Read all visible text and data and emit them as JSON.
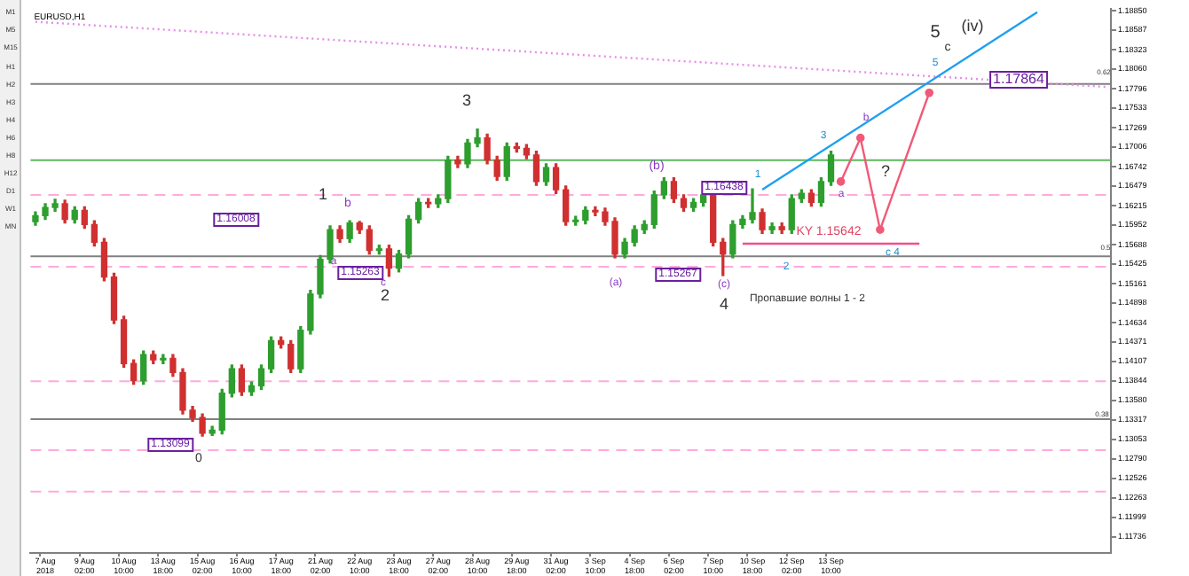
{
  "chart_data": {
    "type": "candlestick",
    "title": "EURUSD,H1",
    "categories": [
      null,
      "7 Aug 2018",
      null,
      null,
      null,
      "9 Aug 02:00",
      null,
      null,
      null,
      "10 Aug 10:00",
      null,
      null,
      null,
      "13 Aug 18:00",
      null,
      null,
      null,
      "15 Aug 02:00",
      null,
      null,
      null,
      "16 Aug 10:00",
      null,
      null,
      null,
      "17 Aug 18:00",
      null,
      null,
      null,
      "21 Aug 02:00",
      null,
      null,
      null,
      "22 Aug 10:00",
      null,
      null,
      null,
      "23 Aug 18:00",
      null,
      null,
      null,
      "27 Aug 02:00",
      null,
      null,
      null,
      "28 Aug 10:00",
      null,
      null,
      null,
      "29 Aug 18:00",
      null,
      null,
      null,
      "31 Aug 02:00",
      null,
      null,
      null,
      "3 Sep 10:00",
      null,
      null,
      null,
      "4 Sep 18:00",
      null,
      null,
      null,
      "6 Sep 02:00",
      null,
      null,
      null,
      "7 Sep 10:00",
      null,
      null,
      null,
      "10 Sep 18:00",
      null,
      null,
      null,
      "12 Sep 02:00",
      null,
      null,
      null,
      "13 Sep 10:00",
      null,
      null,
      null,
      null,
      null,
      null,
      null,
      null,
      null,
      null,
      null,
      null,
      null,
      null,
      null,
      null,
      null,
      null,
      null,
      null,
      null,
      null,
      null,
      null,
      null,
      null,
      null,
      null
    ],
    "ohlc": [
      [
        1.16,
        1.1613,
        1.1595,
        1.1608
      ],
      [
        1.1608,
        1.1624,
        1.1603,
        1.1619
      ],
      [
        1.1619,
        1.163,
        1.1614,
        1.1624
      ],
      [
        1.1624,
        1.1629,
        1.1598,
        1.1603
      ],
      [
        1.1603,
        1.162,
        1.1598,
        1.1615
      ],
      [
        1.1615,
        1.162,
        1.1591,
        1.1596
      ],
      [
        1.1596,
        1.1601,
        1.1567,
        1.1572
      ],
      [
        1.1572,
        1.1577,
        1.152,
        1.1525
      ],
      [
        1.1525,
        1.153,
        1.1462,
        1.1467
      ],
      [
        1.1467,
        1.1472,
        1.1403,
        1.1408
      ],
      [
        1.1408,
        1.1413,
        1.138,
        1.1385
      ],
      [
        1.1385,
        1.1425,
        1.138,
        1.142
      ],
      [
        1.142,
        1.1425,
        1.1408,
        1.1413
      ],
      [
        1.1413,
        1.142,
        1.1408,
        1.1415
      ],
      [
        1.1415,
        1.142,
        1.1391,
        1.1396
      ],
      [
        1.1396,
        1.1401,
        1.134,
        1.1345
      ],
      [
        1.1345,
        1.135,
        1.133,
        1.1335
      ],
      [
        1.1335,
        1.134,
        1.131,
        1.1314
      ],
      [
        1.1314,
        1.1323,
        1.1311,
        1.1318
      ],
      [
        1.1318,
        1.1373,
        1.1313,
        1.1368
      ],
      [
        1.1368,
        1.1406,
        1.1363,
        1.1401
      ],
      [
        1.1401,
        1.1406,
        1.1365,
        1.137
      ],
      [
        1.137,
        1.1383,
        1.1365,
        1.1378
      ],
      [
        1.1378,
        1.1406,
        1.1373,
        1.1401
      ],
      [
        1.1401,
        1.1444,
        1.1396,
        1.1439
      ],
      [
        1.1439,
        1.1444,
        1.1429,
        1.1434
      ],
      [
        1.1434,
        1.1439,
        1.1396,
        1.1401
      ],
      [
        1.1401,
        1.1458,
        1.1396,
        1.1453
      ],
      [
        1.1453,
        1.1507,
        1.1448,
        1.1502
      ],
      [
        1.1502,
        1.1554,
        1.1497,
        1.1549
      ],
      [
        1.1549,
        1.1594,
        1.1544,
        1.1589
      ],
      [
        1.1589,
        1.1594,
        1.1572,
        1.1577
      ],
      [
        1.1577,
        1.1601,
        1.1572,
        1.1598
      ],
      [
        1.1598,
        1.16,
        1.1584,
        1.1589
      ],
      [
        1.1589,
        1.1594,
        1.1556,
        1.1561
      ],
      [
        1.1561,
        1.1568,
        1.1556,
        1.1563
      ],
      [
        1.1563,
        1.1568,
        1.1526,
        1.1537
      ],
      [
        1.1537,
        1.1561,
        1.1532,
        1.1556
      ],
      [
        1.1556,
        1.1608,
        1.1551,
        1.1603
      ],
      [
        1.1603,
        1.1631,
        1.1598,
        1.1626
      ],
      [
        1.1626,
        1.1631,
        1.1619,
        1.1624
      ],
      [
        1.1624,
        1.1636,
        1.1619,
        1.1631
      ],
      [
        1.1631,
        1.1688,
        1.1626,
        1.1683
      ],
      [
        1.1683,
        1.1688,
        1.1673,
        1.1678
      ],
      [
        1.1678,
        1.1711,
        1.1673,
        1.1706
      ],
      [
        1.1706,
        1.1725,
        1.1701,
        1.1713
      ],
      [
        1.1713,
        1.1718,
        1.1678,
        1.1683
      ],
      [
        1.1683,
        1.1688,
        1.1656,
        1.1661
      ],
      [
        1.1661,
        1.1706,
        1.1656,
        1.1701
      ],
      [
        1.1701,
        1.1706,
        1.1694,
        1.1699
      ],
      [
        1.1699,
        1.1704,
        1.1685,
        1.169
      ],
      [
        1.169,
        1.1695,
        1.1649,
        1.1654
      ],
      [
        1.1654,
        1.1678,
        1.1649,
        1.1673
      ],
      [
        1.1673,
        1.1678,
        1.1638,
        1.1643
      ],
      [
        1.1643,
        1.1648,
        1.1595,
        1.16
      ],
      [
        1.16,
        1.1607,
        1.1595,
        1.1602
      ],
      [
        1.1602,
        1.162,
        1.1597,
        1.1615
      ],
      [
        1.1615,
        1.162,
        1.1608,
        1.1613
      ],
      [
        1.1613,
        1.1618,
        1.1595,
        1.16
      ],
      [
        1.16,
        1.1605,
        1.1551,
        1.1556
      ],
      [
        1.1556,
        1.1577,
        1.1551,
        1.1572
      ],
      [
        1.1572,
        1.1594,
        1.1567,
        1.1589
      ],
      [
        1.1589,
        1.1601,
        1.1584,
        1.1596
      ],
      [
        1.1596,
        1.1641,
        1.1591,
        1.1636
      ],
      [
        1.1636,
        1.1659,
        1.1631,
        1.1654
      ],
      [
        1.1654,
        1.1659,
        1.1626,
        1.1631
      ],
      [
        1.1631,
        1.1636,
        1.1614,
        1.1619
      ],
      [
        1.1619,
        1.1631,
        1.1614,
        1.1626
      ],
      [
        1.1626,
        1.1641,
        1.1621,
        1.1636
      ],
      [
        1.1636,
        1.1641,
        1.1567,
        1.1572
      ],
      [
        1.1572,
        1.1577,
        1.1527,
        1.1556
      ],
      [
        1.1556,
        1.1601,
        1.1551,
        1.1596
      ],
      [
        1.1596,
        1.1608,
        1.1591,
        1.1603
      ],
      [
        1.1603,
        1.1644,
        1.1598,
        1.1612
      ],
      [
        1.1612,
        1.1617,
        1.1584,
        1.1589
      ],
      [
        1.1589,
        1.1598,
        1.1584,
        1.1593
      ],
      [
        1.1593,
        1.1598,
        1.1584,
        1.1589
      ],
      [
        1.1589,
        1.1636,
        1.1584,
        1.1631
      ],
      [
        1.1631,
        1.1643,
        1.1626,
        1.1638
      ],
      [
        1.1638,
        1.1643,
        1.1621,
        1.1626
      ],
      [
        1.1626,
        1.1659,
        1.1621,
        1.1654
      ],
      [
        1.1654,
        1.1695,
        1.1649,
        1.169
      ],
      null,
      null,
      null,
      null,
      null,
      null,
      null,
      null,
      null,
      null,
      null,
      null,
      null,
      null,
      null,
      null,
      null,
      null,
      null,
      null,
      null,
      null,
      null,
      null,
      null,
      null,
      null,
      null
    ],
    "series": [
      {
        "type": "line",
        "color": "#1ea0f0",
        "values": [
          null,
          null,
          null,
          null,
          null,
          null,
          null,
          null,
          null,
          null,
          null,
          null,
          null,
          null,
          null,
          null,
          null,
          null,
          null,
          null,
          null,
          null,
          null,
          null,
          null,
          null,
          null,
          null,
          null,
          null,
          null,
          null,
          null,
          null,
          null,
          null,
          null,
          null,
          null,
          null,
          null,
          null,
          null,
          null,
          null,
          null,
          null,
          null,
          null,
          null,
          null,
          null,
          null,
          null,
          null,
          null,
          null,
          null,
          null,
          null,
          null,
          null,
          null,
          null,
          null,
          null,
          null,
          null,
          null,
          null,
          null,
          null,
          null,
          null,
          1.1643,
          null,
          null,
          null,
          null,
          null,
          null,
          null,
          null,
          null,
          null,
          null,
          null,
          null,
          null,
          null,
          null,
          null,
          null,
          null,
          null,
          null,
          null,
          null,
          null,
          null,
          null,
          null,
          1.1883,
          null,
          null,
          null,
          null,
          null,
          null,
          null
        ]
      },
      {
        "type": "line",
        "color": "#f05a78",
        "marker": "circle",
        "values": [
          null,
          null,
          null,
          null,
          null,
          null,
          null,
          null,
          null,
          null,
          null,
          null,
          null,
          null,
          null,
          null,
          null,
          null,
          null,
          null,
          null,
          null,
          null,
          null,
          null,
          null,
          null,
          null,
          null,
          null,
          null,
          null,
          null,
          null,
          null,
          null,
          null,
          null,
          null,
          null,
          null,
          null,
          null,
          null,
          null,
          null,
          null,
          null,
          null,
          null,
          null,
          null,
          null,
          null,
          null,
          null,
          null,
          null,
          null,
          null,
          null,
          null,
          null,
          null,
          null,
          null,
          null,
          null,
          null,
          null,
          null,
          null,
          null,
          null,
          null,
          null,
          null,
          null,
          null,
          null,
          null,
          null,
          1.1654,
          null,
          1.1713,
          null,
          1.1589,
          null,
          null,
          null,
          null,
          1.1774,
          null,
          null,
          null,
          null,
          null,
          null,
          null,
          null,
          null,
          null,
          null,
          null,
          null,
          null,
          null,
          null,
          null,
          null
        ]
      },
      {
        "type": "line",
        "color": "#e88ce8",
        "line_style": "dotted",
        "values": [
          1.187,
          null,
          null,
          null,
          null,
          null,
          null,
          null,
          null,
          null,
          null,
          null,
          null,
          null,
          null,
          null,
          null,
          null,
          null,
          null,
          null,
          null,
          null,
          null,
          null,
          null,
          null,
          null,
          null,
          null,
          null,
          null,
          null,
          null,
          null,
          null,
          null,
          null,
          null,
          null,
          null,
          null,
          null,
          null,
          null,
          null,
          null,
          null,
          null,
          null,
          null,
          null,
          null,
          null,
          null,
          null,
          null,
          null,
          null,
          null,
          null,
          null,
          null,
          null,
          null,
          null,
          null,
          null,
          null,
          null,
          null,
          null,
          null,
          null,
          null,
          null,
          null,
          null,
          null,
          null,
          null,
          null,
          null,
          null,
          null,
          null,
          null,
          null,
          null,
          null,
          null,
          null,
          null,
          null,
          null,
          null,
          null,
          null,
          null,
          null,
          null,
          null,
          null,
          null,
          null,
          null,
          null,
          null,
          null,
          1.1782
        ]
      },
      {
        "type": "line",
        "color": "#f0508c",
        "values": [
          null,
          null,
          null,
          null,
          null,
          null,
          null,
          null,
          null,
          null,
          null,
          null,
          null,
          null,
          null,
          null,
          null,
          null,
          null,
          null,
          null,
          null,
          null,
          null,
          null,
          null,
          null,
          null,
          null,
          null,
          null,
          null,
          null,
          null,
          null,
          null,
          null,
          null,
          null,
          null,
          null,
          null,
          null,
          null,
          null,
          null,
          null,
          null,
          null,
          null,
          null,
          null,
          null,
          null,
          null,
          null,
          null,
          null,
          null,
          null,
          null,
          null,
          null,
          null,
          null,
          null,
          null,
          null,
          null,
          null,
          null,
          null,
          1.157,
          null,
          null,
          null,
          null,
          null,
          null,
          null,
          null,
          null,
          null,
          null,
          null,
          null,
          null,
          null,
          null,
          null,
          1.157,
          null,
          null,
          null,
          null,
          null,
          null,
          null,
          null,
          null,
          null,
          null,
          null,
          null,
          null,
          null,
          null,
          null,
          null,
          null
        ]
      }
    ],
    "ylim": [
      1.1152,
      1.1887
    ],
    "yticks": [
      {
        "value": 1.1885,
        "label": "1.18850"
      },
      {
        "value": 1.18587,
        "label": "1.18587"
      },
      {
        "value": 1.18323,
        "label": "1.18323"
      },
      {
        "value": 1.1806,
        "label": "1.18060"
      },
      {
        "value": 1.17796,
        "label": "1.17796"
      },
      {
        "value": 1.17533,
        "label": "1.17533"
      },
      {
        "value": 1.17269,
        "label": "1.17269"
      },
      {
        "value": 1.17006,
        "label": "1.17006"
      },
      {
        "value": 1.16742,
        "label": "1.16742"
      },
      {
        "value": 1.16479,
        "label": "1.16479"
      },
      {
        "value": 1.16215,
        "label": "1.16215"
      },
      {
        "value": 1.15952,
        "label": "1.15952"
      },
      {
        "value": 1.15688,
        "label": "1.15688"
      },
      {
        "value": 1.15425,
        "label": "1.15425"
      },
      {
        "value": 1.15161,
        "label": "1.15161"
      },
      {
        "value": 1.14898,
        "label": "1.14898"
      },
      {
        "value": 1.14634,
        "label": "1.14634"
      },
      {
        "value": 1.14371,
        "label": "1.14371"
      },
      {
        "value": 1.14107,
        "label": "1.14107"
      },
      {
        "value": 1.13844,
        "label": "1.13844"
      },
      {
        "value": 1.1358,
        "label": "1.13580"
      },
      {
        "value": 1.13317,
        "label": "1.13317"
      },
      {
        "value": 1.13053,
        "label": "1.13053"
      },
      {
        "value": 1.1279,
        "label": "1.12790"
      },
      {
        "value": 1.12526,
        "label": "1.12526"
      },
      {
        "value": 1.12263,
        "label": "1.12263"
      },
      {
        "value": 1.11999,
        "label": "1.11999"
      },
      {
        "value": 1.11736,
        "label": "1.11736"
      }
    ],
    "ref_lines": [
      {
        "axis": "y",
        "value": 1.1786,
        "color": "#808080"
      },
      {
        "axis": "y",
        "value": 1.1553,
        "color": "#808080"
      },
      {
        "axis": "y",
        "value": 1.1333,
        "color": "#808080"
      },
      {
        "axis": "y",
        "value": 1.1683,
        "color": "#5cb85c"
      },
      {
        "axis": "y",
        "value": 1.1636,
        "color": "#ffaadd",
        "line_style": "dashed"
      },
      {
        "axis": "y",
        "value": 1.1539,
        "color": "#ffaadd",
        "line_style": "dashed"
      },
      {
        "axis": "y",
        "value": 1.1384,
        "color": "#ffaadd",
        "line_style": "dashed"
      },
      {
        "axis": "y",
        "value": 1.1291,
        "color": "#ffaadd",
        "line_style": "dashed"
      },
      {
        "axis": "y",
        "value": 1.1235,
        "color": "#ffaadd",
        "line_style": "dashed"
      }
    ],
    "annotations": [
      "M1",
      "M5",
      "M15",
      "H1",
      "H2",
      "H3",
      "H4",
      "H6",
      "H8",
      "H12",
      "D1",
      "W1",
      "MN",
      "1",
      "2",
      "3",
      "4",
      "5",
      "(iv)",
      "c",
      "0",
      "b",
      "a",
      "c",
      "(a)",
      "(b)",
      "(c)",
      "1",
      "2",
      "3",
      "5",
      "a",
      "b",
      "c 4",
      "?",
      "Пропавшие волны 1 - 2",
      "KY 1.15642",
      "1.16008",
      "1.15263",
      "1.13099",
      "1.15267",
      "1.16438",
      "1.17864",
      "0.62",
      "0.5",
      "0.38"
    ]
  }
}
